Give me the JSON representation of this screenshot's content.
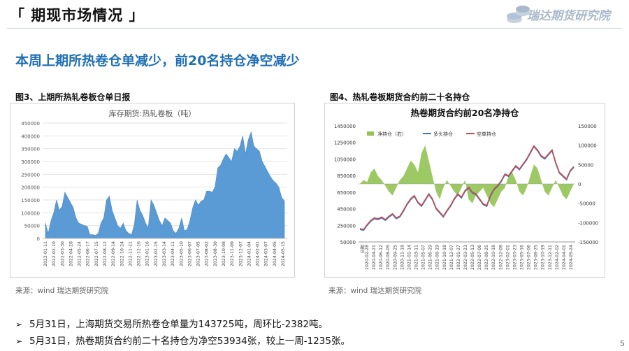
{
  "header": {
    "title": "「 期现市场情况 」",
    "logo_text": "瑞达期货研究院"
  },
  "subtitle": "本周上期所热卷仓单减少，前20名持仓净空减少",
  "figure3": {
    "caption": "图3、上期所热轧卷板仓单日报",
    "source": "来源：wind   瑞达期货研究院",
    "chart_data": {
      "type": "area",
      "title": "库存期货:热轧卷板（吨）",
      "ylim": [
        0,
        450000
      ],
      "yticks": [
        "0",
        "50000",
        "100000",
        "150000",
        "200000",
        "250000",
        "300000",
        "350000",
        "400000",
        "450000"
      ],
      "grid": true,
      "color": "#5b9bd5",
      "xticks": [
        "2022-01-11",
        "2022-02-10",
        "2022-03-30",
        "2022-04-28",
        "2022-05-24",
        "2022-06-17",
        "2022-07-15",
        "2022-08-12",
        "2022-09-14",
        "2022-10-24",
        "2022-11-21",
        "2022-12-16",
        "2023-01-16",
        "2023-02-15",
        "2023-03-14",
        "2023-04-11",
        "2023-05-10",
        "2023-06-07",
        "2023-07-05",
        "2023-08-02",
        "2023-08-30",
        "2023-10-08",
        "2023-11-09",
        "2023-12-07",
        "2024-01-04",
        "2024-02-01",
        "2024-03-07",
        "2024-04-05",
        "2024-05-15"
      ],
      "values": [
        60000,
        20000,
        70000,
        100000,
        150000,
        110000,
        125000,
        180000,
        160000,
        140000,
        120000,
        80000,
        60000,
        55000,
        50000,
        48000,
        15000,
        15000,
        12000,
        20000,
        60000,
        80000,
        150000,
        165000,
        110000,
        80000,
        50000,
        40000,
        60000,
        30000,
        20000,
        15000,
        55000,
        150000,
        110000,
        90000,
        60000,
        40000,
        150000,
        130000,
        100000,
        70000,
        50000,
        80000,
        70000,
        60000,
        30000,
        20000,
        40000,
        80000,
        30000,
        35000,
        70000,
        120000,
        150000,
        130000,
        145000,
        150000,
        185000,
        185000,
        180000,
        200000,
        275000,
        285000,
        310000,
        330000,
        315000,
        300000,
        350000,
        340000,
        360000,
        400000,
        330000,
        385000,
        415000,
        360000,
        350000,
        340000,
        300000,
        280000,
        260000,
        240000,
        225000,
        215000,
        200000,
        160000,
        145000
      ]
    }
  },
  "figure4": {
    "caption": "图4、热轧卷板期货合约前二十名持仓",
    "source": "来源：wind   瑞达期货研究院",
    "chart_data": {
      "type": "line",
      "title": "热卷期货合约前20名净持仓",
      "left_ylim": [
        50000,
        1450000
      ],
      "left_yticks": [
        "50000",
        "250000",
        "450000",
        "650000",
        "850000",
        "1050000",
        "1250000",
        "1450000"
      ],
      "right_ylim": [
        -150000,
        150000
      ],
      "right_yticks": [
        "150000",
        "100000",
        "50000",
        "0",
        "-50000",
        "-100000",
        "-150000"
      ],
      "xlabel": "日期",
      "legend": "top",
      "xticks": [
        "2020-02-28",
        "2020-04-21",
        "2020-06-12",
        "2020-08-05",
        "2020-09-25",
        "2020-11-18",
        "2021-01-14",
        "2021-03-11",
        "2021-05-07",
        "2021-06-29",
        "2021-08-19",
        "2021-10-18",
        "2021-12-07",
        "2022-01-27",
        "2022-03-23",
        "2022-05-13",
        "2022-07-06",
        "2022-08-25",
        "2022-10-18",
        "2022-12-08",
        "2023-02-01",
        "2023-03-23",
        "2023-05-16",
        "2023-07-06",
        "2023-08-25",
        "2023-10-19",
        "2023-12-11",
        "2024-02-02",
        "2024-04-01",
        "2024-05-24"
      ],
      "series": [
        {
          "name": "净持仓（右）",
          "type": "area",
          "color": "#92c353",
          "values": [
            0,
            10000,
            5000,
            30000,
            40000,
            20000,
            10000,
            -5000,
            -20000,
            -30000,
            -10000,
            10000,
            20000,
            40000,
            60000,
            50000,
            30000,
            80000,
            100000,
            60000,
            20000,
            -20000,
            -40000,
            -10000,
            10000,
            -5000,
            -20000,
            -30000,
            -10000,
            10000,
            -40000,
            -50000,
            -30000,
            -20000,
            -10000,
            -30000,
            -50000,
            -60000,
            -40000,
            -20000,
            -10000,
            20000,
            30000,
            10000,
            -20000,
            -30000,
            -10000,
            20000,
            50000,
            40000,
            10000,
            -20000,
            -30000,
            -10000,
            10000,
            -10000,
            -30000,
            -40000,
            -20000,
            0
          ]
        },
        {
          "name": "多头持仓",
          "type": "line",
          "color": "#4472c4",
          "values": [
            200000,
            190000,
            250000,
            300000,
            330000,
            320000,
            340000,
            310000,
            350000,
            380000,
            330000,
            350000,
            420000,
            500000,
            560000,
            600000,
            520000,
            480000,
            550000,
            620000,
            560000,
            450000,
            400000,
            350000,
            420000,
            480000,
            560000,
            620000,
            580000,
            660000,
            700000,
            640000,
            620000,
            560000,
            500000,
            480000,
            600000,
            680000,
            720000,
            780000,
            860000,
            840000,
            900000,
            960000,
            920000,
            980000,
            1040000,
            1120000,
            1200000,
            1150000,
            1080000,
            1050000,
            1100000,
            1150000,
            1000000,
            880000,
            840000,
            800000,
            900000,
            950000
          ]
        },
        {
          "name": "空单持仓",
          "type": "line",
          "color": "#c0504d",
          "values": [
            210000,
            200000,
            260000,
            310000,
            340000,
            330000,
            350000,
            320000,
            360000,
            390000,
            340000,
            360000,
            430000,
            510000,
            570000,
            610000,
            530000,
            490000,
            560000,
            630000,
            570000,
            460000,
            410000,
            360000,
            430000,
            490000,
            570000,
            630000,
            590000,
            670000,
            710000,
            650000,
            630000,
            570000,
            510000,
            490000,
            610000,
            690000,
            730000,
            790000,
            870000,
            850000,
            910000,
            970000,
            930000,
            990000,
            1050000,
            1130000,
            1210000,
            1160000,
            1090000,
            1060000,
            1110000,
            1160000,
            1010000,
            890000,
            850000,
            810000,
            910000,
            960000
          ]
        }
      ]
    }
  },
  "bullets": [
    "5月31日，上海期货交易所热卷仓单量为143725吨，周环比-2382吨。",
    "5月31日，热卷期货合约前二十名持仓为净空53934张，较上一周-1235张。"
  ],
  "page_number": "5"
}
